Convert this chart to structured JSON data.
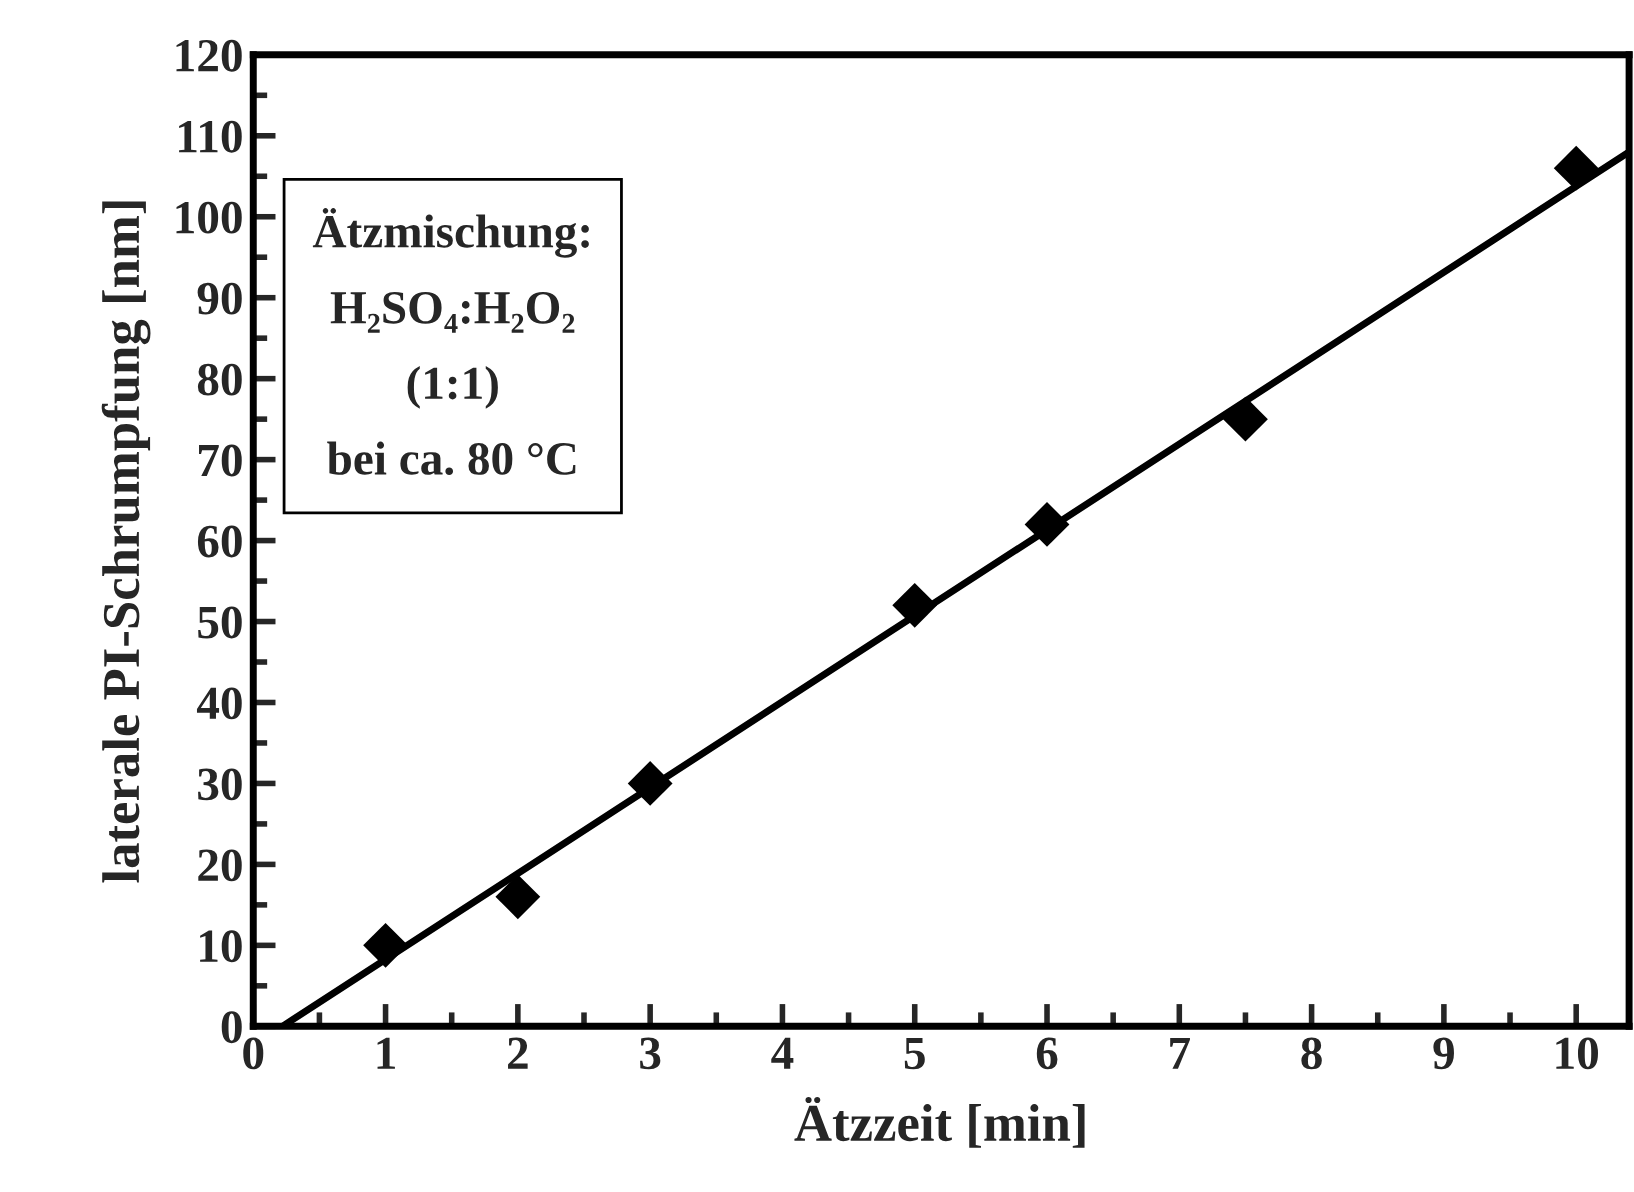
{
  "chart_data": {
    "type": "scatter",
    "xlabel": "Ätzzeit [min]",
    "ylabel": "laterale PI-Schrumpfung [nm]",
    "annotations": [
      "Ätzmischung:\nH₂SO₄:H₂O₂\n(1:1)\nbei ca. 80 °C"
    ],
    "series": [
      {
        "color": "#000000",
        "marker": "diamond",
        "x": [
          1,
          2,
          3,
          5,
          6,
          7.5,
          10
        ],
        "values": [
          10,
          16,
          30,
          52,
          62,
          75,
          106
        ]
      },
      {
        "type": "line",
        "color": "#000000",
        "marker": "none",
        "line_style": "solid",
        "x": [
          0.22,
          10.4
        ],
        "values": [
          0,
          108
        ]
      }
    ],
    "xlim": [
      0,
      10.4
    ],
    "ylim": [
      0,
      120
    ],
    "xticks": [
      0,
      1,
      2,
      3,
      4,
      5,
      6,
      7,
      8,
      9,
      10
    ],
    "yticks": [
      0,
      10,
      20,
      30,
      40,
      50,
      60,
      70,
      80,
      90,
      100,
      110,
      120
    ],
    "grid": false,
    "legend": false
  }
}
